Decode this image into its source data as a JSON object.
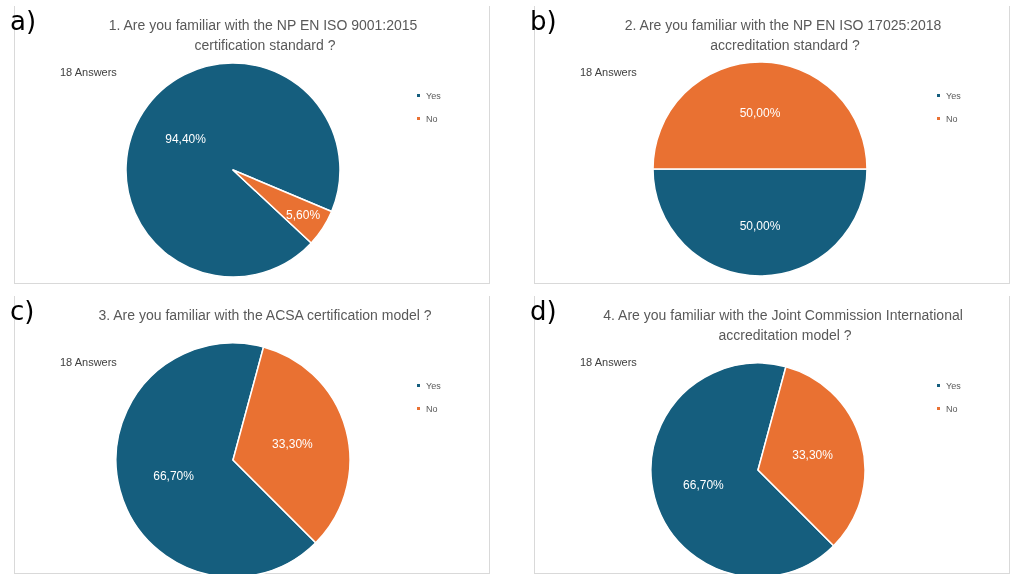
{
  "chart_data": [
    {
      "type": "pie",
      "title": "1. Are you familiar with the NP EN ISO 9001:2015 certification standard ?",
      "categories": [
        "Yes",
        "No"
      ],
      "values": [
        94.4,
        5.6
      ],
      "colors": [
        "#155e7e",
        "#e97132"
      ],
      "value_labels": [
        "94,40%",
        "5,60%"
      ],
      "legend": "right",
      "annotations": [
        "a)",
        "18 Answers"
      ]
    },
    {
      "type": "pie",
      "title": "2. Are you familiar with the NP EN ISO 17025:2018 accreditation standard ?",
      "categories": [
        "Yes",
        "No"
      ],
      "values": [
        50,
        50
      ],
      "colors": [
        "#155e7e",
        "#e97132"
      ],
      "value_labels": [
        "50,00%",
        "50,00%"
      ],
      "legend": "right",
      "annotations": [
        "b)",
        "18 Answers"
      ]
    },
    {
      "type": "pie",
      "title": "3. Are you familiar with the ACSA certification model ?",
      "categories": [
        "Yes",
        "No"
      ],
      "values": [
        66.7,
        33.3
      ],
      "colors": [
        "#155e7e",
        "#e97132"
      ],
      "value_labels": [
        "66,70%",
        "33,30%"
      ],
      "legend": "right",
      "annotations": [
        "c)",
        "18 Answers"
      ]
    },
    {
      "type": "pie",
      "title": "4. Are you familiar with the Joint Commission International accreditation model ?",
      "categories": [
        "Yes",
        "No"
      ],
      "values": [
        66.7,
        33.3
      ],
      "colors": [
        "#155e7e",
        "#e97132"
      ],
      "value_labels": [
        "66,70%",
        "33,30%"
      ],
      "legend": "right",
      "annotations": [
        "d)",
        "18 Answers"
      ]
    }
  ]
}
